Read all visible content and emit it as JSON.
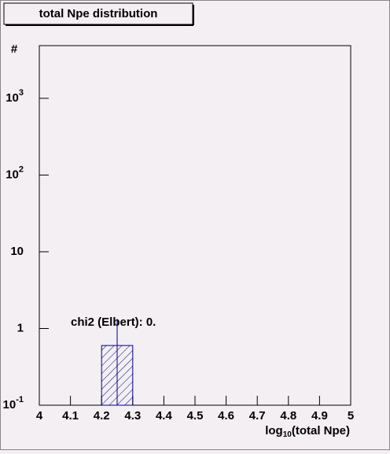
{
  "chart_data": {
    "type": "histogram",
    "title": "total Npe distribution",
    "y_label": "#",
    "x_label": {
      "prefix": "log",
      "subscript": "10",
      "suffix": "(total Npe)"
    },
    "annotation": "chi2 (Elbert): 0.",
    "bins": [
      4,
      4.1,
      4.2,
      4.3,
      4.4,
      4.5,
      4.6,
      4.7,
      4.8,
      4.9,
      5
    ],
    "values": [
      0,
      0,
      0.6,
      0,
      0,
      0,
      0,
      0,
      0,
      0
    ],
    "errors": [
      0,
      0,
      0.73,
      0,
      0,
      0,
      0,
      0,
      0,
      0
    ],
    "color": "#000080",
    "xlim": [
      4,
      5
    ],
    "xticks": [
      4,
      4.1,
      4.2,
      4.3,
      4.4,
      4.5,
      4.6,
      4.7,
      4.8,
      4.9,
      5
    ],
    "ylim": [
      0.1,
      4860
    ],
    "log_y": true,
    "yticks": [
      {
        "value": 0.1,
        "label": "10",
        "exponent": "-1"
      },
      1,
      10,
      {
        "value": 100,
        "label": "10",
        "exponent": "2"
      },
      {
        "value": 1000,
        "label": "10",
        "exponent": "3"
      }
    ]
  }
}
